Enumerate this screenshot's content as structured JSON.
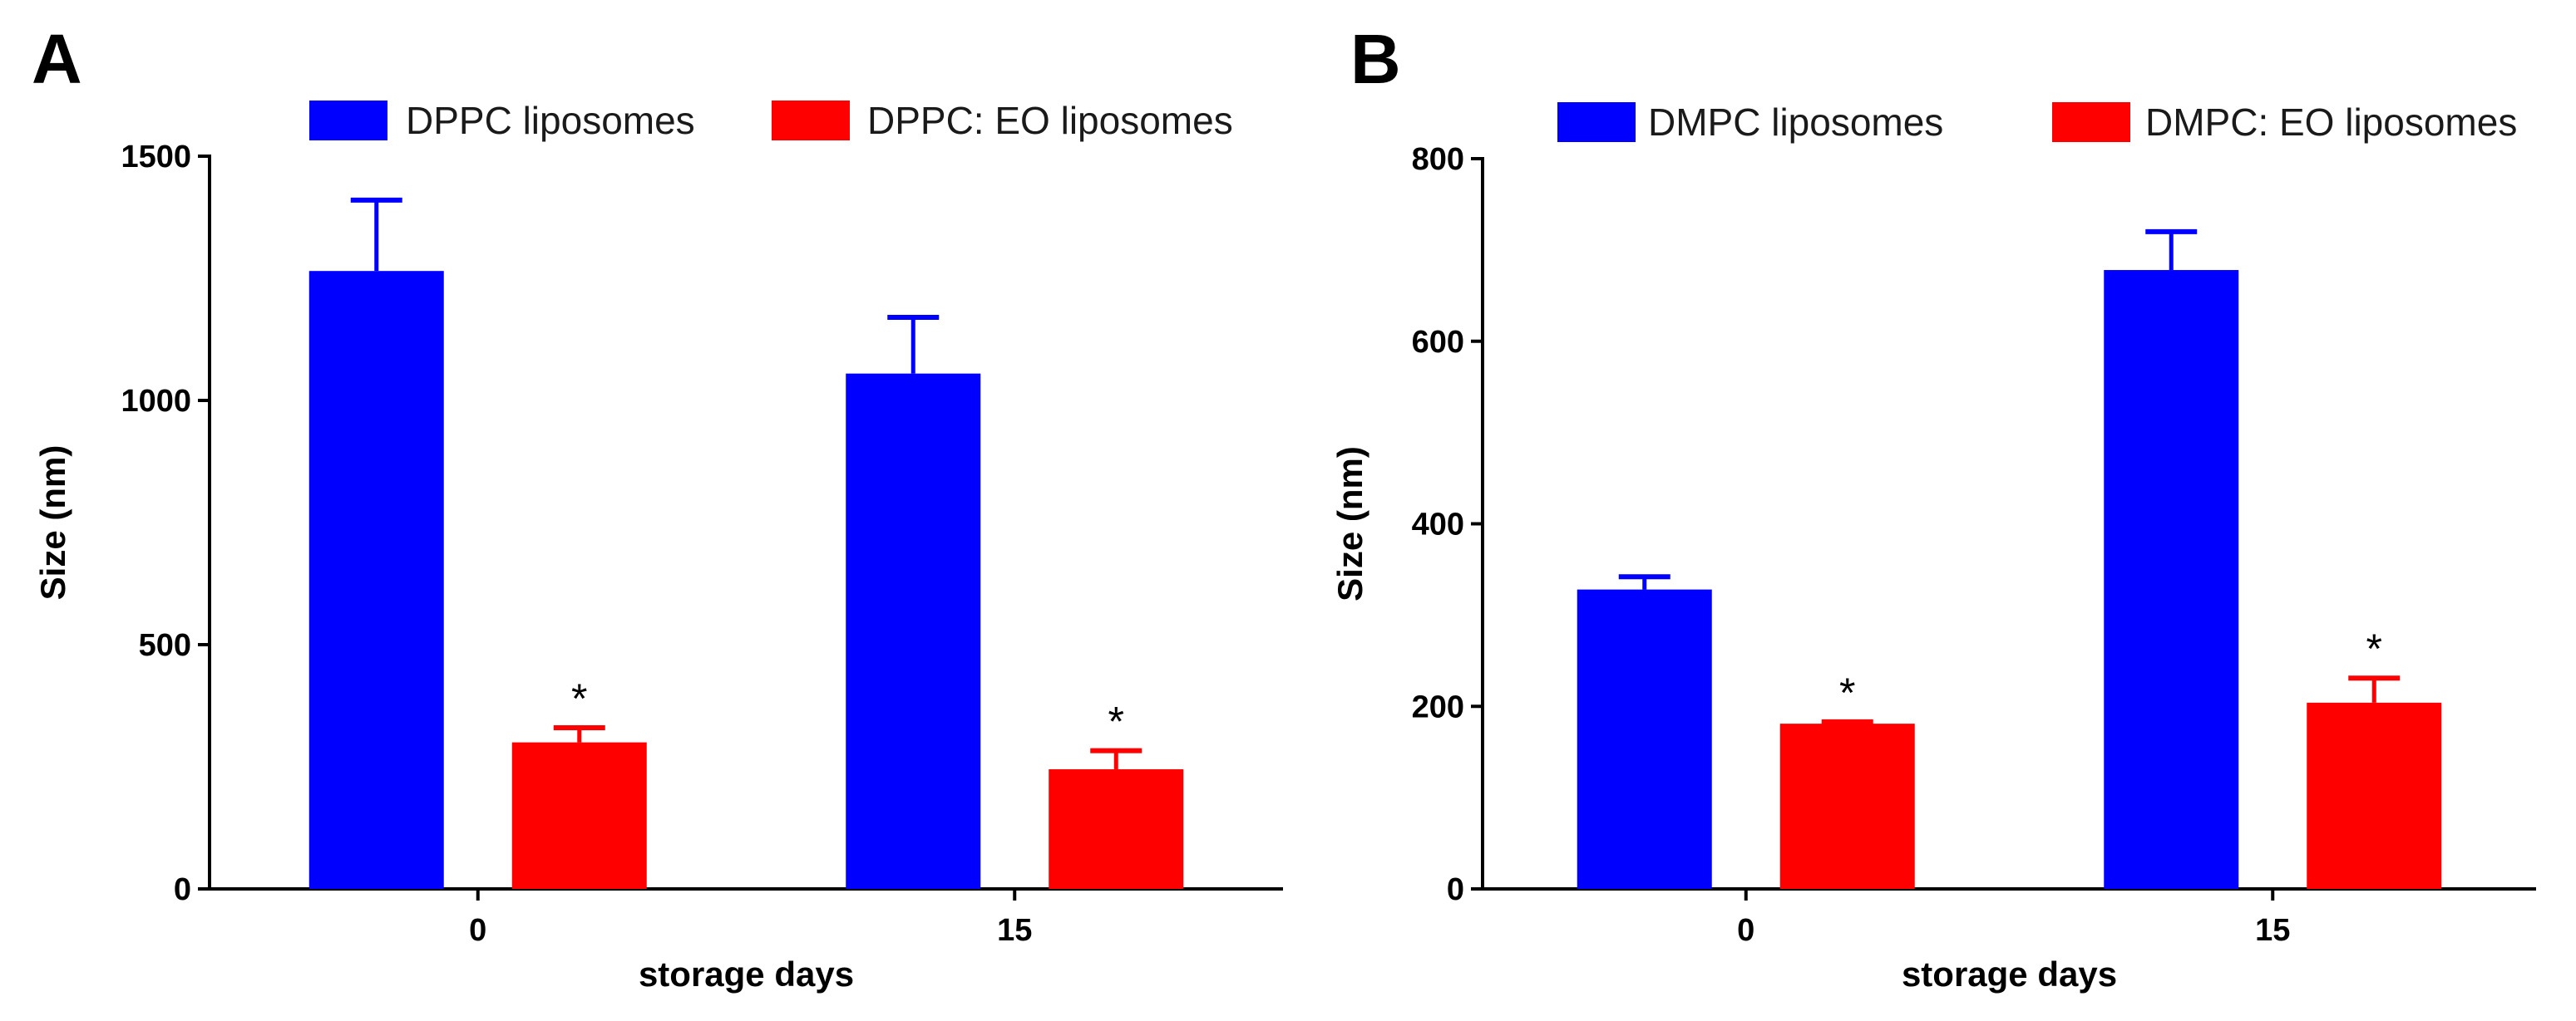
{
  "chart_data": [
    {
      "type": "bar",
      "panel_label": "A",
      "categories": [
        "0",
        "15"
      ],
      "series": [
        {
          "name": "DPPC liposomes",
          "color": "#0000ff",
          "values": [
            1265,
            1055
          ],
          "errors": [
            145,
            115
          ],
          "significance": [
            "",
            ""
          ]
        },
        {
          "name": "DPPC: EO liposomes",
          "color": "#ff0000",
          "values": [
            300,
            245
          ],
          "errors": [
            30,
            38
          ],
          "significance": [
            "*",
            "*"
          ]
        }
      ],
      "xlabel": "storage days",
      "ylabel": "Size (nm)",
      "ylim": [
        0,
        1500
      ],
      "yticks": [
        0,
        500,
        1000,
        1500
      ],
      "ytick_labels": [
        "0",
        "500",
        "1000",
        "1500"
      ],
      "grid": false,
      "legend_position": "top"
    },
    {
      "type": "bar",
      "panel_label": "B",
      "categories": [
        "0",
        "15"
      ],
      "series": [
        {
          "name": "DMPC liposomes",
          "color": "#0000ff",
          "values": [
            328,
            678
          ],
          "errors": [
            14,
            42
          ],
          "significance": [
            "",
            ""
          ]
        },
        {
          "name": "DMPC: EO liposomes",
          "color": "#ff0000",
          "values": [
            181,
            204
          ],
          "errors": [
            2,
            27
          ],
          "significance": [
            "*",
            "*"
          ]
        }
      ],
      "xlabel": "storage days",
      "ylabel": "Size (nm)",
      "ylim": [
        0,
        800
      ],
      "yticks": [
        0,
        200,
        400,
        600,
        800
      ],
      "ytick_labels": [
        "0",
        "200",
        "400",
        "600",
        "800"
      ],
      "grid": false,
      "legend_position": "top"
    }
  ]
}
